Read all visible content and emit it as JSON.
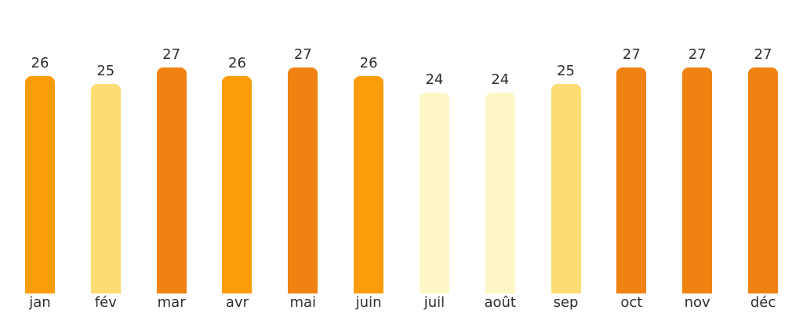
{
  "chart_data": {
    "type": "bar",
    "title": "",
    "xlabel": "",
    "ylabel": "",
    "categories": [
      "jan",
      "fév",
      "mar",
      "avr",
      "mai",
      "juin",
      "juil",
      "août",
      "sep",
      "oct",
      "nov",
      "déc"
    ],
    "values": [
      26,
      25,
      27,
      26,
      27,
      26,
      24,
      24,
      25,
      27,
      27,
      27
    ],
    "ylim": [
      0,
      35
    ],
    "grid": false,
    "axes_shown": false,
    "legend": "none",
    "value_labels_shown": true,
    "bar_colors_by_value": {
      "24": "#FEF6C6",
      "25": "#FDDD71",
      "26": "#FB9D0A",
      "27": "#F08211"
    },
    "label_color": "#2e2e2e",
    "background": "#ffffff"
  }
}
